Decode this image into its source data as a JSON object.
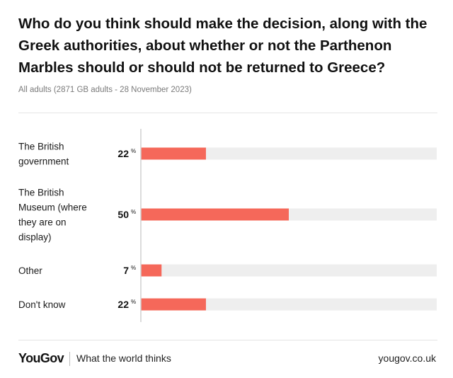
{
  "header": {
    "title": "Who do you think should make the decision, along with the Greek authorities, about whether or not the Parthenon Marbles should or should not be returned to Greece?",
    "subtitle": "All adults (2871 GB adults - 28 November 2023)"
  },
  "footer": {
    "brand": "YouGov",
    "tagline": "What the world thinks",
    "url": "yougov.co.uk"
  },
  "colors": {
    "bar": "#f5685a",
    "track": "#eeeeee",
    "axis": "#d0d0d0"
  },
  "chart_data": {
    "type": "bar",
    "orientation": "horizontal",
    "categories": [
      "The British government",
      "The British Museum (where they are on display)",
      "Other",
      "Don't know"
    ],
    "category_lines": [
      [
        "The British",
        "government"
      ],
      [
        "The British",
        "Museum (where",
        "they are on",
        "display)"
      ],
      [
        "Other"
      ],
      [
        "Don't know"
      ]
    ],
    "values": [
      22,
      50,
      7,
      22
    ],
    "unit": "%",
    "xlim": [
      0,
      100
    ]
  }
}
